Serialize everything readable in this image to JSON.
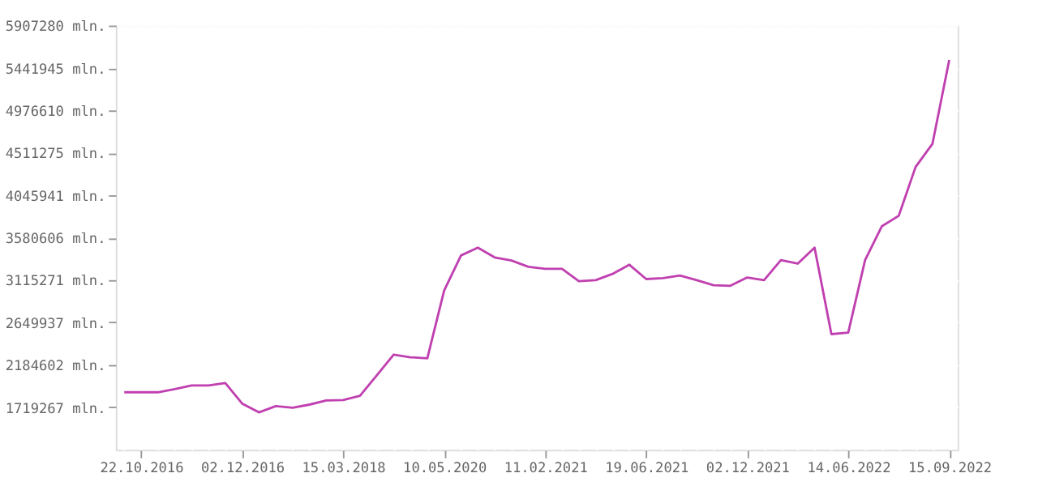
{
  "chart_data": {
    "type": "line",
    "categories": [
      null,
      "22.10.2016",
      null,
      null,
      null,
      null,
      null,
      "02.12.2016",
      null,
      null,
      null,
      null,
      null,
      "15.03.2018",
      null,
      null,
      null,
      null,
      null,
      "10.05.2020",
      null,
      null,
      null,
      null,
      null,
      "11.02.2021",
      null,
      null,
      null,
      null,
      null,
      "19.06.2021",
      null,
      null,
      null,
      null,
      null,
      "02.12.2021",
      null,
      null,
      null,
      null,
      null,
      "14.06.2022",
      null,
      null,
      null,
      null,
      null,
      "15.09.2022"
    ],
    "series": [
      {
        "color": "#c040b0",
        "values": [
          1885000,
          1885000,
          1885000,
          1919000,
          1960000,
          1960000,
          1987000,
          1762000,
          1665000,
          1733000,
          1716000,
          1750000,
          1795000,
          1800000,
          1846000,
          2071000,
          2298000,
          2269000,
          2257000,
          3002000,
          3386000,
          3471000,
          3364000,
          3330000,
          3262000,
          3239000,
          3239000,
          3103000,
          3115000,
          3183000,
          3284000,
          3127000,
          3137000,
          3166000,
          3115000,
          3059000,
          3053000,
          3144000,
          3115000,
          3335000,
          3296000,
          3471000,
          2523000,
          2540000,
          3335000,
          3707000,
          3821000,
          4356000,
          4609000,
          5530000
        ]
      }
    ],
    "ylim": [
      1253932,
      5907280
    ],
    "yticks": [
      {
        "value": 1719267,
        "label": "1719267 mln."
      },
      {
        "value": 2184602,
        "label": "2184602 mln."
      },
      {
        "value": 2649937,
        "label": "2649937 mln."
      },
      {
        "value": 3115271,
        "label": "3115271 mln."
      },
      {
        "value": 3580606,
        "label": "3580606 mln."
      },
      {
        "value": 4045941,
        "label": "4045941 mln."
      },
      {
        "value": 4511275,
        "label": "4511275 mln."
      },
      {
        "value": 4976610,
        "label": "4976610 mln."
      },
      {
        "value": 5441945,
        "label": "5441945 mln."
      },
      {
        "value": 5907280,
        "label": "5907280 mln."
      }
    ],
    "grid": true,
    "marker": "none",
    "line_style": "solid",
    "legend": false
  }
}
